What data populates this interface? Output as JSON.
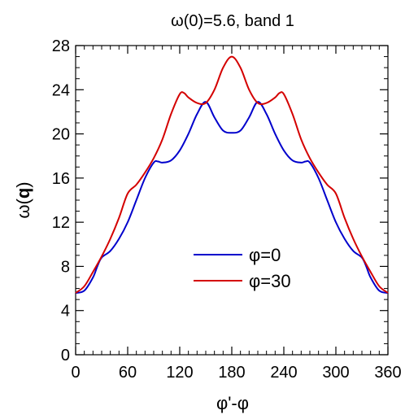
{
  "chart_data": {
    "type": "line",
    "title": "ω(0)=5.6, band 1",
    "xlabel": "φ'-φ",
    "ylabel_prefix": "ω(",
    "ylabel_bold": "q",
    "ylabel_suffix": ")",
    "xlim": [
      0,
      360
    ],
    "ylim": [
      0,
      28
    ],
    "xticks": [
      0,
      60,
      120,
      180,
      240,
      300,
      360
    ],
    "yticks": [
      0,
      4,
      8,
      12,
      16,
      20,
      24,
      28
    ],
    "x_minor_step": 10,
    "y_minor_step": 1,
    "legend_position": "center-right",
    "series": [
      {
        "name": "φ=0",
        "color": "#0000cc",
        "x": [
          0,
          10,
          20,
          25,
          30,
          40,
          50,
          60,
          70,
          80,
          90,
          95,
          100,
          110,
          120,
          130,
          140,
          150,
          160,
          170,
          180,
          190,
          200,
          210,
          220,
          230,
          240,
          250,
          260,
          265,
          270,
          280,
          290,
          300,
          310,
          320,
          330,
          335,
          340,
          350,
          360
        ],
        "y": [
          5.6,
          5.8,
          7.0,
          8.0,
          8.8,
          9.4,
          10.5,
          12.0,
          14.0,
          16.0,
          17.4,
          17.5,
          17.4,
          17.6,
          18.5,
          20.0,
          21.8,
          22.9,
          21.5,
          20.3,
          20.1,
          20.3,
          21.5,
          22.9,
          21.8,
          20.0,
          18.5,
          17.6,
          17.4,
          17.5,
          17.4,
          16.0,
          14.0,
          12.0,
          10.5,
          9.4,
          8.8,
          8.0,
          7.0,
          5.8,
          5.6
        ]
      },
      {
        "name": "φ=30",
        "color": "#d40000",
        "x": [
          0,
          10,
          20,
          30,
          40,
          50,
          60,
          70,
          80,
          90,
          100,
          110,
          120,
          125,
          130,
          140,
          150,
          160,
          170,
          180,
          190,
          200,
          210,
          220,
          230,
          235,
          240,
          250,
          260,
          270,
          280,
          290,
          300,
          310,
          320,
          330,
          340,
          350,
          360
        ],
        "y": [
          5.6,
          6.2,
          7.5,
          8.9,
          10.5,
          12.4,
          14.6,
          15.4,
          16.5,
          17.8,
          19.5,
          21.8,
          23.6,
          23.7,
          23.3,
          22.8,
          22.8,
          24.0,
          26.0,
          27.0,
          26.0,
          24.0,
          22.8,
          22.8,
          23.3,
          23.7,
          23.6,
          21.8,
          19.5,
          17.8,
          16.5,
          15.4,
          14.6,
          12.4,
          10.5,
          8.9,
          7.5,
          6.2,
          5.6
        ]
      }
    ]
  }
}
